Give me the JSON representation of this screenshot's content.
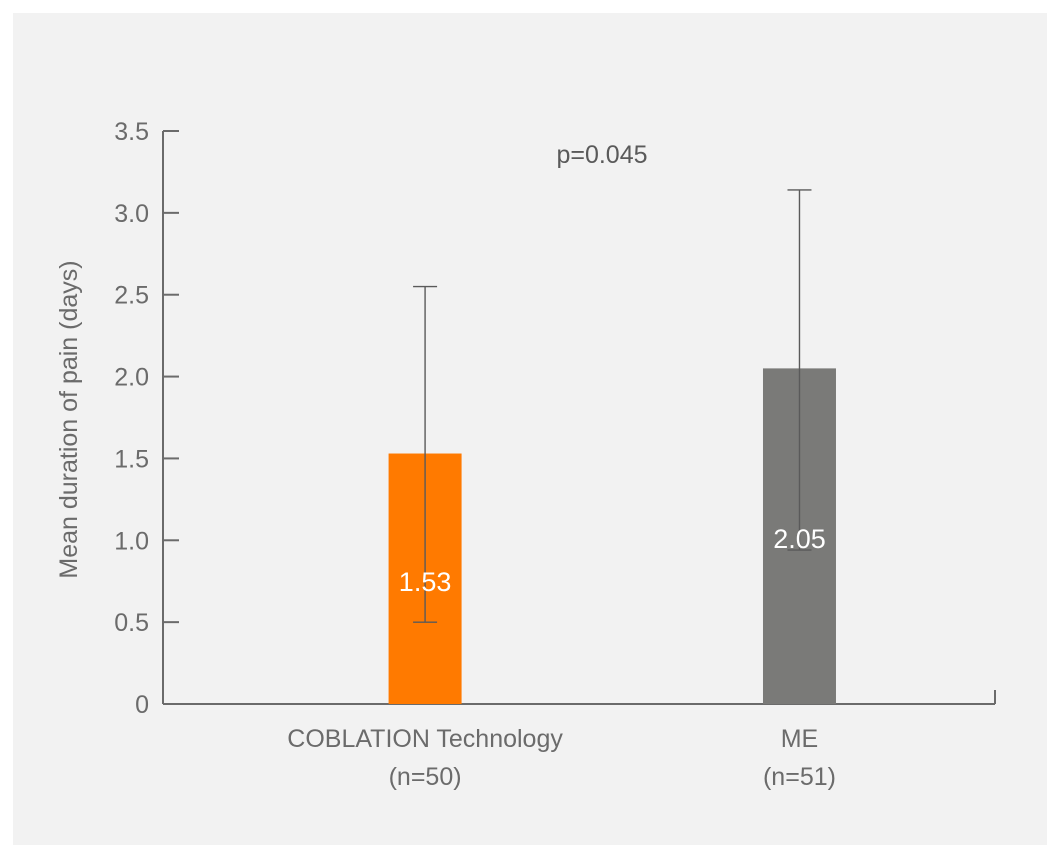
{
  "chart_data": {
    "type": "bar",
    "categories": [
      {
        "line1": "COBLATION Technology",
        "line2": "(n=50)"
      },
      {
        "line1": "ME",
        "line2": "(n=51)"
      }
    ],
    "values": [
      1.53,
      2.05
    ],
    "error_low": [
      0.5,
      0.94
    ],
    "error_high": [
      2.55,
      3.14
    ],
    "data_labels": [
      "1.53",
      "2.05"
    ],
    "colors": [
      "#ff7a00",
      "#7a7a78"
    ],
    "ylabel": "Mean duration of pain (days)",
    "ylim": [
      0,
      3.5
    ],
    "yticks": [
      0,
      0.5,
      1.0,
      1.5,
      2.0,
      2.5,
      3.0,
      3.5
    ],
    "ytick_labels": [
      "0",
      "0.5",
      "1.0",
      "1.5",
      "2.0",
      "2.5",
      "3.0",
      "3.5"
    ],
    "annotation": "p=0.045",
    "grid": false,
    "legend": "none"
  }
}
